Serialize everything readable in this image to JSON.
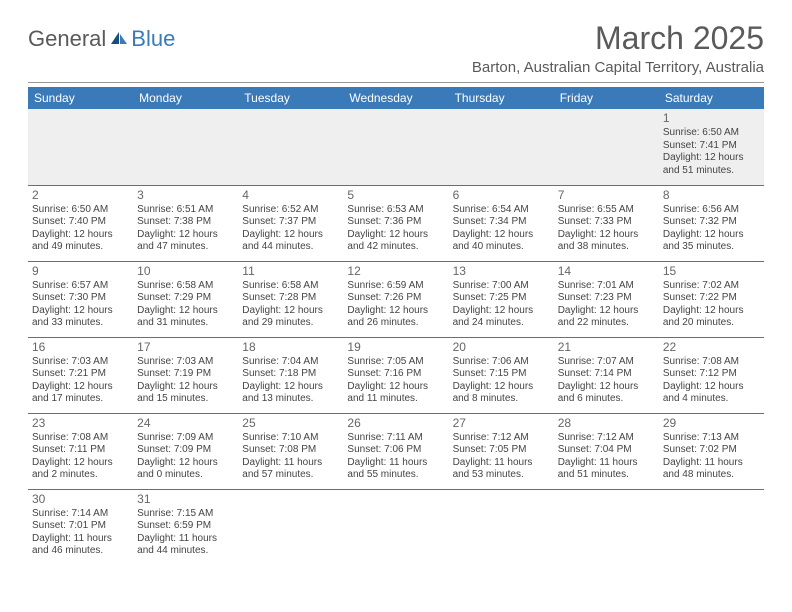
{
  "logo": {
    "word1": "General",
    "word2": "Blue"
  },
  "title": "March 2025",
  "location": "Barton, Australian Capital Territory, Australia",
  "day_headers": [
    "Sunday",
    "Monday",
    "Tuesday",
    "Wednesday",
    "Thursday",
    "Friday",
    "Saturday"
  ],
  "colors": {
    "header_bg": "#3a7ab8",
    "header_text": "#ffffff",
    "cell_border": "#3a7ab8",
    "empty_bg": "#efefef",
    "body_text": "#444444",
    "title_text": "#5a5a5a"
  },
  "weeks": [
    [
      null,
      null,
      null,
      null,
      null,
      null,
      {
        "n": "1",
        "sr": "Sunrise: 6:50 AM",
        "ss": "Sunset: 7:41 PM",
        "d1": "Daylight: 12 hours",
        "d2": "and 51 minutes."
      }
    ],
    [
      {
        "n": "2",
        "sr": "Sunrise: 6:50 AM",
        "ss": "Sunset: 7:40 PM",
        "d1": "Daylight: 12 hours",
        "d2": "and 49 minutes."
      },
      {
        "n": "3",
        "sr": "Sunrise: 6:51 AM",
        "ss": "Sunset: 7:38 PM",
        "d1": "Daylight: 12 hours",
        "d2": "and 47 minutes."
      },
      {
        "n": "4",
        "sr": "Sunrise: 6:52 AM",
        "ss": "Sunset: 7:37 PM",
        "d1": "Daylight: 12 hours",
        "d2": "and 44 minutes."
      },
      {
        "n": "5",
        "sr": "Sunrise: 6:53 AM",
        "ss": "Sunset: 7:36 PM",
        "d1": "Daylight: 12 hours",
        "d2": "and 42 minutes."
      },
      {
        "n": "6",
        "sr": "Sunrise: 6:54 AM",
        "ss": "Sunset: 7:34 PM",
        "d1": "Daylight: 12 hours",
        "d2": "and 40 minutes."
      },
      {
        "n": "7",
        "sr": "Sunrise: 6:55 AM",
        "ss": "Sunset: 7:33 PM",
        "d1": "Daylight: 12 hours",
        "d2": "and 38 minutes."
      },
      {
        "n": "8",
        "sr": "Sunrise: 6:56 AM",
        "ss": "Sunset: 7:32 PM",
        "d1": "Daylight: 12 hours",
        "d2": "and 35 minutes."
      }
    ],
    [
      {
        "n": "9",
        "sr": "Sunrise: 6:57 AM",
        "ss": "Sunset: 7:30 PM",
        "d1": "Daylight: 12 hours",
        "d2": "and 33 minutes."
      },
      {
        "n": "10",
        "sr": "Sunrise: 6:58 AM",
        "ss": "Sunset: 7:29 PM",
        "d1": "Daylight: 12 hours",
        "d2": "and 31 minutes."
      },
      {
        "n": "11",
        "sr": "Sunrise: 6:58 AM",
        "ss": "Sunset: 7:28 PM",
        "d1": "Daylight: 12 hours",
        "d2": "and 29 minutes."
      },
      {
        "n": "12",
        "sr": "Sunrise: 6:59 AM",
        "ss": "Sunset: 7:26 PM",
        "d1": "Daylight: 12 hours",
        "d2": "and 26 minutes."
      },
      {
        "n": "13",
        "sr": "Sunrise: 7:00 AM",
        "ss": "Sunset: 7:25 PM",
        "d1": "Daylight: 12 hours",
        "d2": "and 24 minutes."
      },
      {
        "n": "14",
        "sr": "Sunrise: 7:01 AM",
        "ss": "Sunset: 7:23 PM",
        "d1": "Daylight: 12 hours",
        "d2": "and 22 minutes."
      },
      {
        "n": "15",
        "sr": "Sunrise: 7:02 AM",
        "ss": "Sunset: 7:22 PM",
        "d1": "Daylight: 12 hours",
        "d2": "and 20 minutes."
      }
    ],
    [
      {
        "n": "16",
        "sr": "Sunrise: 7:03 AM",
        "ss": "Sunset: 7:21 PM",
        "d1": "Daylight: 12 hours",
        "d2": "and 17 minutes."
      },
      {
        "n": "17",
        "sr": "Sunrise: 7:03 AM",
        "ss": "Sunset: 7:19 PM",
        "d1": "Daylight: 12 hours",
        "d2": "and 15 minutes."
      },
      {
        "n": "18",
        "sr": "Sunrise: 7:04 AM",
        "ss": "Sunset: 7:18 PM",
        "d1": "Daylight: 12 hours",
        "d2": "and 13 minutes."
      },
      {
        "n": "19",
        "sr": "Sunrise: 7:05 AM",
        "ss": "Sunset: 7:16 PM",
        "d1": "Daylight: 12 hours",
        "d2": "and 11 minutes."
      },
      {
        "n": "20",
        "sr": "Sunrise: 7:06 AM",
        "ss": "Sunset: 7:15 PM",
        "d1": "Daylight: 12 hours",
        "d2": "and 8 minutes."
      },
      {
        "n": "21",
        "sr": "Sunrise: 7:07 AM",
        "ss": "Sunset: 7:14 PM",
        "d1": "Daylight: 12 hours",
        "d2": "and 6 minutes."
      },
      {
        "n": "22",
        "sr": "Sunrise: 7:08 AM",
        "ss": "Sunset: 7:12 PM",
        "d1": "Daylight: 12 hours",
        "d2": "and 4 minutes."
      }
    ],
    [
      {
        "n": "23",
        "sr": "Sunrise: 7:08 AM",
        "ss": "Sunset: 7:11 PM",
        "d1": "Daylight: 12 hours",
        "d2": "and 2 minutes."
      },
      {
        "n": "24",
        "sr": "Sunrise: 7:09 AM",
        "ss": "Sunset: 7:09 PM",
        "d1": "Daylight: 12 hours",
        "d2": "and 0 minutes."
      },
      {
        "n": "25",
        "sr": "Sunrise: 7:10 AM",
        "ss": "Sunset: 7:08 PM",
        "d1": "Daylight: 11 hours",
        "d2": "and 57 minutes."
      },
      {
        "n": "26",
        "sr": "Sunrise: 7:11 AM",
        "ss": "Sunset: 7:06 PM",
        "d1": "Daylight: 11 hours",
        "d2": "and 55 minutes."
      },
      {
        "n": "27",
        "sr": "Sunrise: 7:12 AM",
        "ss": "Sunset: 7:05 PM",
        "d1": "Daylight: 11 hours",
        "d2": "and 53 minutes."
      },
      {
        "n": "28",
        "sr": "Sunrise: 7:12 AM",
        "ss": "Sunset: 7:04 PM",
        "d1": "Daylight: 11 hours",
        "d2": "and 51 minutes."
      },
      {
        "n": "29",
        "sr": "Sunrise: 7:13 AM",
        "ss": "Sunset: 7:02 PM",
        "d1": "Daylight: 11 hours",
        "d2": "and 48 minutes."
      }
    ],
    [
      {
        "n": "30",
        "sr": "Sunrise: 7:14 AM",
        "ss": "Sunset: 7:01 PM",
        "d1": "Daylight: 11 hours",
        "d2": "and 46 minutes."
      },
      {
        "n": "31",
        "sr": "Sunrise: 7:15 AM",
        "ss": "Sunset: 6:59 PM",
        "d1": "Daylight: 11 hours",
        "d2": "and 44 minutes."
      },
      null,
      null,
      null,
      null,
      null
    ]
  ]
}
